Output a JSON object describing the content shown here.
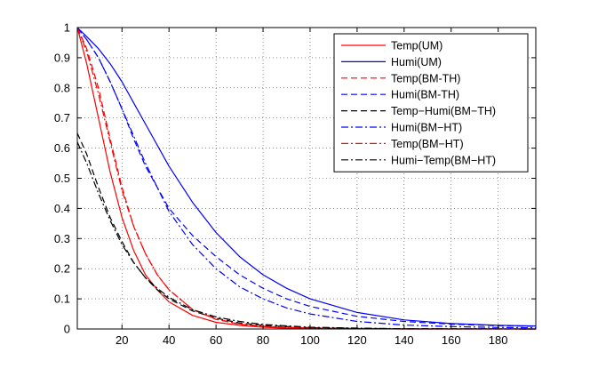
{
  "chart_data": {
    "type": "line",
    "title": "",
    "xlabel": "",
    "ylabel": "",
    "xlim": [
      1,
      196
    ],
    "ylim": [
      0,
      1
    ],
    "grid": true,
    "legend_position": "top-right",
    "x_ticks": [
      "20",
      "40",
      "60",
      "80",
      "100",
      "120",
      "140",
      "160",
      "180"
    ],
    "y_ticks": [
      "0",
      "0.1",
      "0.2",
      "0.3",
      "0.4",
      "0.5",
      "0.6",
      "0.7",
      "0.8",
      "0.9",
      "1"
    ],
    "series": [
      {
        "name": "Temp(UM)",
        "color": "#ff0000",
        "dash": "solid",
        "x": [
          1,
          5,
          10,
          15,
          20,
          25,
          30,
          35,
          40,
          50,
          60,
          70,
          80,
          90,
          100,
          120,
          140,
          160,
          180,
          196
        ],
        "y": [
          1.0,
          0.88,
          0.7,
          0.52,
          0.37,
          0.26,
          0.18,
          0.13,
          0.09,
          0.045,
          0.022,
          0.012,
          0.006,
          0.003,
          0.002,
          0.001,
          0.0,
          0.0,
          0.0,
          0.0
        ]
      },
      {
        "name": "Humi(UM)",
        "color": "#0000ff",
        "dash": "solid",
        "x": [
          1,
          5,
          10,
          15,
          20,
          25,
          30,
          40,
          50,
          60,
          70,
          80,
          90,
          100,
          120,
          140,
          160,
          180,
          196
        ],
        "y": [
          1.0,
          0.97,
          0.93,
          0.88,
          0.82,
          0.75,
          0.68,
          0.54,
          0.42,
          0.32,
          0.24,
          0.18,
          0.135,
          0.1,
          0.055,
          0.03,
          0.018,
          0.012,
          0.01
        ]
      },
      {
        "name": "Temp(BM-TH)",
        "color": "#ff0000",
        "dash": "dash",
        "x": [
          1,
          5,
          10,
          15,
          20,
          25,
          30,
          35,
          40,
          50,
          60,
          70,
          80,
          100,
          120,
          140,
          160,
          196
        ],
        "y": [
          1.0,
          0.93,
          0.8,
          0.63,
          0.47,
          0.34,
          0.25,
          0.18,
          0.13,
          0.065,
          0.032,
          0.016,
          0.008,
          0.003,
          0.001,
          0.0,
          0.0,
          0.0
        ]
      },
      {
        "name": "Humi(BM-TH)",
        "color": "#0000ff",
        "dash": "dash",
        "x": [
          1,
          5,
          10,
          15,
          20,
          25,
          30,
          40,
          50,
          60,
          70,
          80,
          90,
          100,
          120,
          140,
          160,
          180,
          196
        ],
        "y": [
          1.0,
          0.96,
          0.9,
          0.82,
          0.73,
          0.63,
          0.54,
          0.4,
          0.31,
          0.24,
          0.18,
          0.135,
          0.1,
          0.075,
          0.042,
          0.025,
          0.016,
          0.011,
          0.009
        ]
      },
      {
        "name": "Temp−Humi(BM−TH)",
        "color": "#000000",
        "dash": "dash",
        "x": [
          1,
          5,
          10,
          15,
          20,
          25,
          30,
          35,
          40,
          50,
          60,
          70,
          80,
          100,
          120,
          140,
          196
        ],
        "y": [
          0.65,
          0.58,
          0.47,
          0.37,
          0.29,
          0.22,
          0.17,
          0.13,
          0.1,
          0.06,
          0.036,
          0.02,
          0.012,
          0.004,
          0.002,
          0.001,
          0.0
        ]
      },
      {
        "name": "Humi(BM−HT)",
        "color": "#0000ff",
        "dash": "dashdot",
        "x": [
          1,
          5,
          10,
          15,
          20,
          25,
          30,
          40,
          50,
          60,
          70,
          80,
          90,
          100,
          120,
          140,
          160,
          180,
          196
        ],
        "y": [
          1.0,
          0.96,
          0.9,
          0.82,
          0.73,
          0.64,
          0.55,
          0.39,
          0.28,
          0.2,
          0.14,
          0.1,
          0.07,
          0.05,
          0.025,
          0.013,
          0.008,
          0.005,
          0.004
        ]
      },
      {
        "name": "Temp(BM−HT)",
        "color": "#ff0000",
        "dash": "dashdot",
        "x": [
          1,
          5,
          10,
          15,
          20,
          25,
          30,
          35,
          40,
          50,
          60,
          70,
          80,
          100,
          120,
          196
        ],
        "y": [
          1.0,
          0.92,
          0.78,
          0.62,
          0.46,
          0.34,
          0.25,
          0.18,
          0.13,
          0.065,
          0.033,
          0.017,
          0.009,
          0.003,
          0.001,
          0.0
        ]
      },
      {
        "name": "Humi−Temp(BM−HT)",
        "color": "#000000",
        "dash": "dashdot",
        "x": [
          1,
          5,
          10,
          15,
          20,
          25,
          30,
          35,
          40,
          50,
          60,
          70,
          80,
          100,
          120,
          140,
          196
        ],
        "y": [
          0.62,
          0.55,
          0.45,
          0.36,
          0.28,
          0.22,
          0.17,
          0.135,
          0.105,
          0.064,
          0.04,
          0.025,
          0.015,
          0.006,
          0.003,
          0.001,
          0.0
        ]
      }
    ]
  }
}
